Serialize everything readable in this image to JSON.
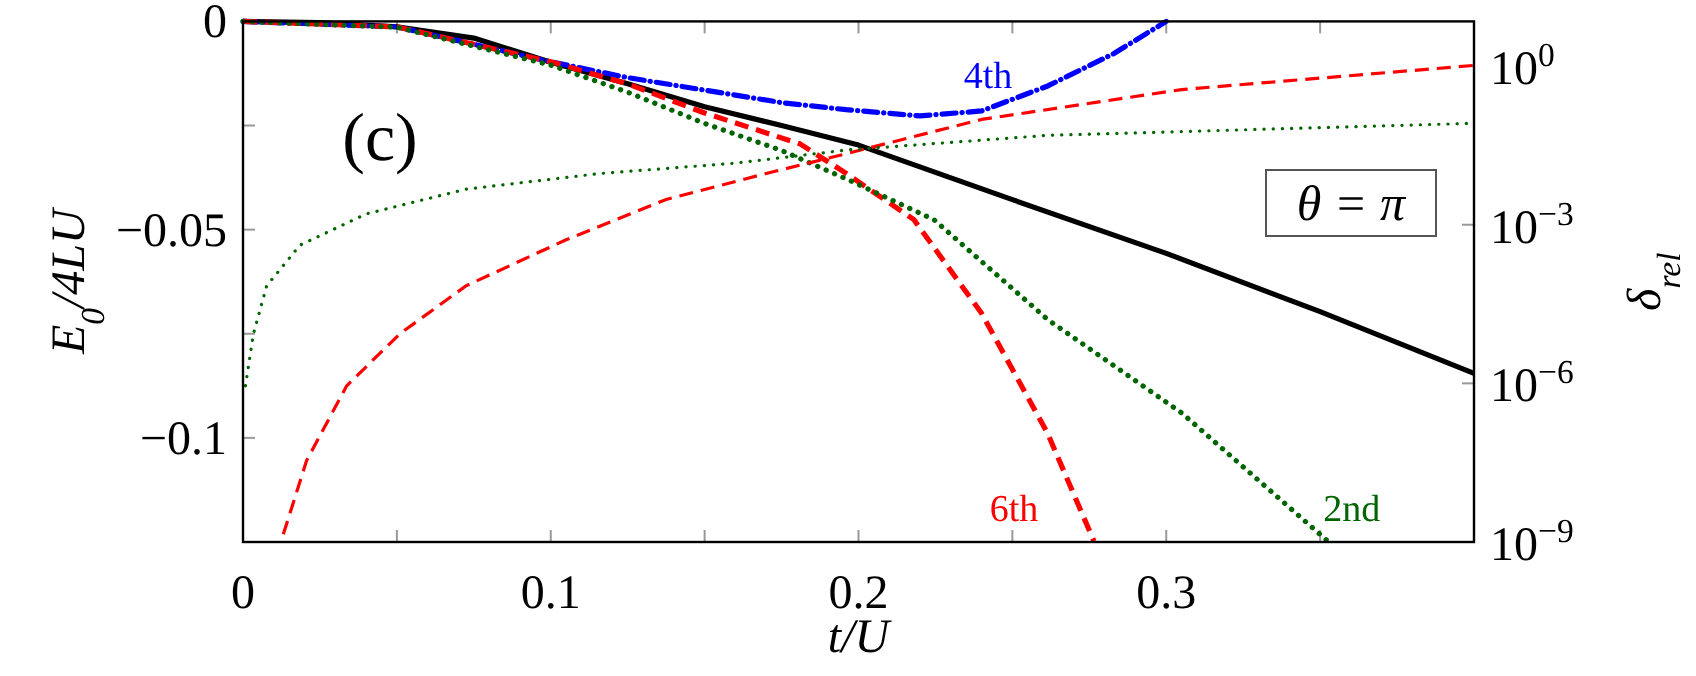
{
  "chart_data": {
    "type": "line",
    "xlabel": "t/U",
    "ylabel": "E$_{0}$/4LU",
    "y2label": "δ$_{rel}$",
    "xlim": [
      0,
      0.4
    ],
    "xticks": [
      0,
      {
        "value": 0.05,
        "label": null
      },
      0.1,
      {
        "value": 0.15,
        "label": null
      },
      0.2,
      {
        "value": 0.25,
        "label": null
      },
      0.3,
      {
        "value": 0.35,
        "label": null
      },
      {
        "value": 0.4,
        "label": null
      }
    ],
    "ylim": [
      -0.125,
      0
    ],
    "yticks": [
      {
        "value": -0.125,
        "label": null
      },
      {
        "value": -0.1,
        "label": "−0.1"
      },
      {
        "value": -0.075,
        "label": null
      },
      {
        "value": -0.05,
        "label": "−0.05"
      },
      {
        "value": -0.025,
        "label": null
      },
      0
    ],
    "y2lim": [
      1e-09,
      7
    ],
    "y2ticks": [
      {
        "value": 1e-09,
        "label": "10$^{−9}$"
      },
      {
        "value": 1e-06,
        "label": "10$^{−6}$"
      },
      {
        "value": 0.001,
        "label": "10$^{−3}$"
      },
      {
        "value": 1,
        "label": "10$^{0}$"
      }
    ],
    "log": "y2",
    "grid": false,
    "marker": "none",
    "annotations": [
      "(c)",
      "θ = π"
    ],
    "series": [
      {
        "color": "#000000",
        "line_style": "solid",
        "x": [
          0,
          0.025,
          0.05,
          0.075,
          0.1,
          0.125,
          0.15,
          0.175,
          0.2,
          0.25,
          0.3,
          0.35,
          0.4
        ],
        "values": [
          0,
          -0.0003,
          -0.0013,
          -0.004,
          -0.0098,
          -0.015,
          -0.0205,
          -0.025,
          -0.0297,
          -0.0428,
          -0.0557,
          -0.0697,
          -0.0845
        ]
      },
      {
        "name": "4th",
        "color": "#0000ff",
        "line_style": "dashdot",
        "x": [
          0,
          0.05,
          0.1,
          0.125,
          0.15,
          0.175,
          0.196,
          0.22,
          0.24,
          0.2615,
          0.283,
          0.3
        ],
        "values": [
          0,
          -0.0013,
          -0.0097,
          -0.0135,
          -0.0165,
          -0.0195,
          -0.0212,
          -0.0227,
          -0.0215,
          -0.0155,
          -0.0077,
          0
        ]
      },
      {
        "name": "6th",
        "color": "#ff0000",
        "line_style": "dashed",
        "x": [
          0,
          0.05,
          0.1,
          0.125,
          0.15,
          0.181,
          0.196,
          0.218,
          0.24,
          0.2615,
          0.2765
        ],
        "values": [
          0,
          -0.0013,
          -0.0097,
          -0.015,
          -0.022,
          -0.0294,
          -0.0365,
          -0.0476,
          -0.0701,
          -0.099,
          -0.1248
        ]
      },
      {
        "name": "2nd",
        "color": "#006400",
        "line_style": "dotted",
        "x": [
          0,
          0.05,
          0.1,
          0.125,
          0.15,
          0.175,
          0.1966,
          0.2245,
          0.2615,
          0.305,
          0.3525
        ],
        "values": [
          0,
          -0.0014,
          -0.0105,
          -0.017,
          -0.0245,
          -0.031,
          -0.038,
          -0.0476,
          -0.0716,
          -0.094,
          -0.1248
        ]
      },
      {
        "color": "#ff0000",
        "line_style": "dashed",
        "axis": "y2",
        "x": [
          0.0131,
          0.0207,
          0.0337,
          0.051,
          0.0725,
          0.105,
          0.1375,
          0.17,
          0.196,
          0.24,
          0.305,
          0.4
        ],
        "values": [
          1.4e-09,
          3.5e-08,
          9e-07,
          8.7e-06,
          7e-05,
          0.00052,
          0.003,
          0.0093,
          0.022,
          0.098,
          0.36,
          1.03
        ]
      },
      {
        "color": "#006400",
        "line_style": "dotted",
        "axis": "y2",
        "x": [
          0.0008,
          0.0034,
          0.0077,
          0.0185,
          0.04,
          0.0725,
          0.116,
          0.1595,
          0.1966,
          0.2615,
          0.4
        ],
        "values": [
          9e-07,
          8.7e-06,
          7e-05,
          0.00041,
          0.0016,
          0.0047,
          0.0093,
          0.0145,
          0.026,
          0.049,
          0.083
        ]
      }
    ]
  }
}
